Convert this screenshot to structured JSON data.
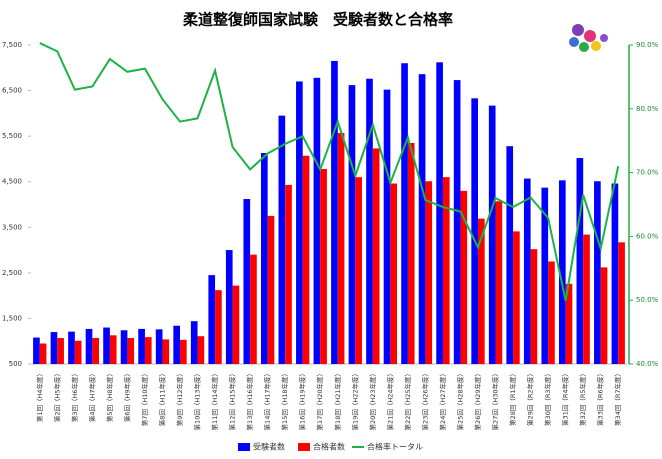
{
  "chart_data": {
    "type": "bar-line",
    "title": "柔道整復師国家試験　受験者数と合格率",
    "categories": [
      "第1回（H4年度）",
      "第2回（H5年度）",
      "第3回（H6年度）",
      "第4回（H7年度）",
      "第5回（H8年度）",
      "第6回（H9年度）",
      "第7回（H10年度）",
      "第8回（H11年度）",
      "第9回（H12年度）",
      "第10回（H13年度）",
      "第11回（H14年度）",
      "第12回（H15年度）",
      "第13回（H16年度）",
      "第14回（H17年度）",
      "第15回（H18年度）",
      "第16回（H19年度）",
      "第17回（H20年度）",
      "第18回（H21年度）",
      "第19回（H22年度）",
      "第20回（H23年度）",
      "第21回（H24年度）",
      "第22回（H25年度）",
      "第23回（H26年度）",
      "第24回（H27年度）",
      "第25回（H28年度）",
      "第26回（H29年度）",
      "第27回（H30年度）",
      "第28回（R1年度）",
      "第29回（R2年度）",
      "第30回（R3年度）",
      "第31回（R4年度）",
      "第32回（R5年度）",
      "第33回（R6年度）",
      "第34回（R7年度）"
    ],
    "series": [
      {
        "name": "受験者数",
        "color": "#0000ff",
        "values": [
          1080,
          1200,
          1210,
          1270,
          1300,
          1240,
          1270,
          1260,
          1340,
          1440,
          2450,
          3000,
          4120,
          5130,
          5950,
          6700,
          6780,
          7150,
          6620,
          6760,
          6520,
          7100,
          6860,
          7120,
          6730,
          6330,
          6170,
          5280,
          4570,
          4370,
          4530,
          5020,
          4510,
          4460
        ]
      },
      {
        "name": "合格者数",
        "color": "#ff0000",
        "values": [
          950,
          1070,
          1010,
          1070,
          1130,
          1070,
          1090,
          1040,
          1030,
          1110,
          2120,
          2220,
          2900,
          3750,
          4430,
          5070,
          4780,
          5570,
          4600,
          5230,
          4460,
          5350,
          4510,
          4600,
          4300,
          3690,
          4070,
          3410,
          3020,
          2750,
          2260,
          3340,
          2620,
          3170
        ]
      },
      {
        "name": "合格率トータル",
        "color": "#1db245",
        "axis": "y2",
        "values": [
          90.3,
          89,
          83,
          83.5,
          87.8,
          85.8,
          86.3,
          81.5,
          78,
          78.5,
          86,
          74,
          70.5,
          73,
          74.5,
          75.7,
          70.5,
          78,
          69.5,
          77.5,
          68.4,
          75.5,
          65.7,
          64.6,
          63.9,
          58.3,
          66,
          64.6,
          66.1,
          62.9,
          49.9,
          66.5,
          58.1,
          71
        ]
      }
    ],
    "ylim": [
      500,
      7500
    ],
    "yticks": [
      500,
      {
        "value": 1500,
        "label": "1,500"
      },
      {
        "value": 2500,
        "label": "2,500"
      },
      {
        "value": 3500,
        "label": "3,500"
      },
      {
        "value": 4500,
        "label": "4,500"
      },
      {
        "value": 5500,
        "label": "5,500"
      },
      {
        "value": 6500,
        "label": "6,500"
      },
      {
        "value": 7500,
        "label": "7,500"
      }
    ],
    "y2lim": [
      40,
      90
    ],
    "y2ticks": [
      {
        "value": 40,
        "label": "40.0%"
      },
      {
        "value": 50,
        "label": "50.0%"
      },
      {
        "value": 60,
        "label": "60.0%"
      },
      {
        "value": 70,
        "label": "70.0%"
      },
      {
        "value": 80,
        "label": "80.0%"
      },
      {
        "value": 90,
        "label": "90.0%"
      }
    ],
    "grid": false
  }
}
